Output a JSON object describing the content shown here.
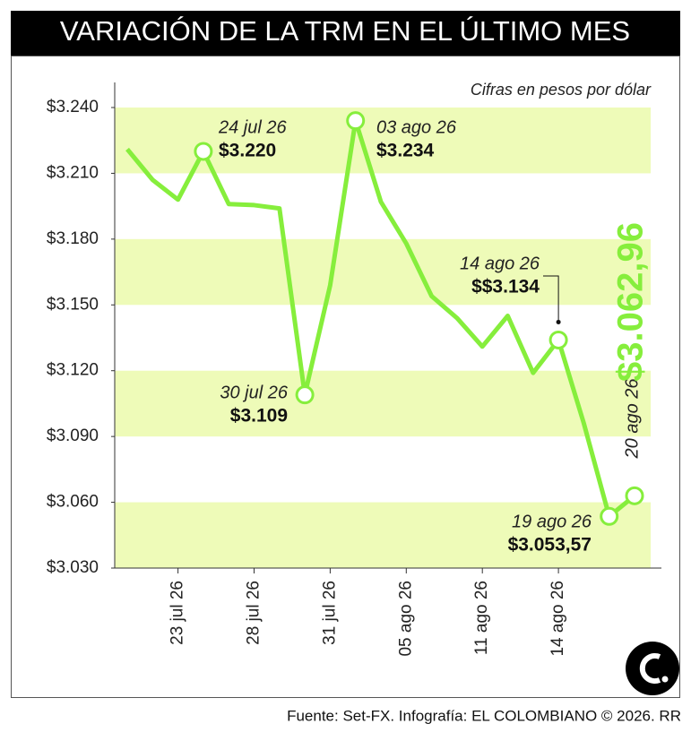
{
  "chart_data": {
    "type": "line",
    "title": "VARIACIÓN DE LA TRM EN EL ÚLTIMO MES",
    "subtitle": "Cifras en pesos por dólar",
    "source": "Fuente: Set-FX. Infografía: EL COLOMBIANO © 2026. RR",
    "categories": [
      null,
      null,
      "23 jul 26",
      null,
      null,
      "28 jul 26",
      null,
      null,
      "31 jul 26",
      null,
      null,
      "05 ago 26",
      null,
      null,
      "11 ago 26",
      null,
      null,
      "14 ago 26",
      null,
      null,
      null
    ],
    "series": [
      {
        "name": "TRM",
        "color": "#86ee3c",
        "values": [
          3221,
          3207,
          3198,
          3220,
          3196,
          3195.5,
          3194,
          3109,
          3159,
          3234,
          3197,
          3178,
          3154,
          3144,
          3131,
          3145,
          3119,
          3134,
          3096,
          3053.57,
          3062.96
        ],
        "value_labels": [
          null,
          null,
          null,
          "$3.220",
          null,
          null,
          null,
          "$3.109",
          null,
          "$3.234",
          null,
          null,
          null,
          null,
          null,
          null,
          null,
          "$$3.134",
          null,
          "$3.053,57",
          "$3.062,96"
        ],
        "point_labels": [
          null,
          null,
          null,
          "24 jul 26",
          null,
          null,
          null,
          "30 jul 26",
          null,
          "03 ago 26",
          null,
          null,
          null,
          null,
          null,
          null,
          null,
          "14 ago 26",
          null,
          "19 ago 26",
          "20 ago 26"
        ]
      }
    ],
    "ylim": [
      3030,
      3240
    ],
    "yticks": [
      {
        "value": 3030,
        "label": "$3.030"
      },
      {
        "value": 3060,
        "label": "$3.060"
      },
      {
        "value": 3090,
        "label": "$3.090"
      },
      {
        "value": 3120,
        "label": "$3.120"
      },
      {
        "value": 3150,
        "label": "$3.150"
      },
      {
        "value": 3180,
        "label": "$3.180"
      },
      {
        "value": 3210,
        "label": "$3.210"
      },
      {
        "value": 3240,
        "label": "$3.240"
      }
    ],
    "bands": true
  }
}
